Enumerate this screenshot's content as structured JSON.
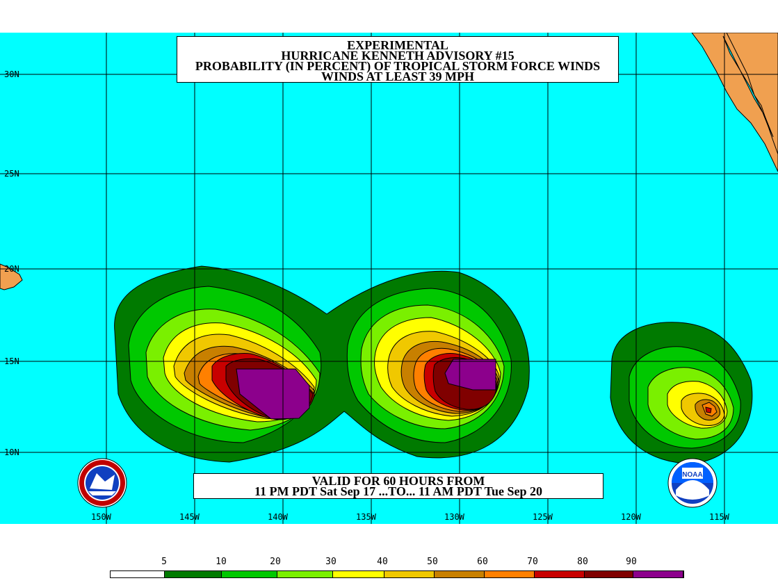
{
  "title": {
    "line1": "EXPERIMENTAL",
    "line2": "HURRICANE KENNETH ADVISORY #15",
    "line3": "PROBABILITY (IN PERCENT) OF TROPICAL STORM FORCE WINDS",
    "line4": "WINDS AT LEAST 39 MPH"
  },
  "valid": {
    "line1": "VALID FOR 60 HOURS FROM",
    "line2": "11 PM PDT Sat Sep 17 ...TO... 11 AM PDT Tue Sep 20"
  },
  "lat_labels": [
    "30N",
    "25N",
    "20N",
    "15N",
    "10N"
  ],
  "lon_labels": [
    "150W",
    "145W",
    "140W",
    "135W",
    "130W",
    "125W",
    "120W",
    "115W"
  ],
  "legend": {
    "ticks": [
      "5",
      "10",
      "20",
      "30",
      "40",
      "50",
      "60",
      "70",
      "80",
      "90"
    ],
    "colors": [
      "#ffffff",
      "#007a00",
      "#00c800",
      "#7af000",
      "#ffff00",
      "#f0c800",
      "#c88000",
      "#ff8000",
      "#c80000",
      "#800000",
      "#8c008c"
    ]
  },
  "colors": {
    "ocean": "#00ffff",
    "land": "#f0a050",
    "grid": "#000000"
  },
  "logos": {
    "left": "nws-logo",
    "right": "noaa-logo",
    "noaa_text": "NOAA"
  }
}
